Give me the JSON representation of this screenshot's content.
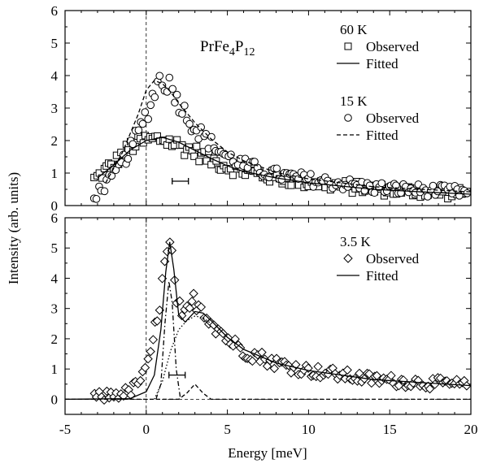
{
  "chart_data": {
    "type": "scatter",
    "xlabel": "Energy [meV]",
    "ylabel": "Intensity (arb. units)",
    "xlim": [
      -5,
      20
    ],
    "x_ticks": [
      "-5",
      "0",
      "5",
      "10",
      "15",
      "20"
    ],
    "panels": [
      {
        "name": "top",
        "ylim": [
          0,
          6
        ],
        "y_ticks": [
          "0",
          "1",
          "2",
          "3",
          "4",
          "5",
          "6"
        ],
        "compound": {
          "base": "PrFe",
          "sub1": "4",
          "mid": "P",
          "sub2": "12"
        },
        "legend": [
          {
            "temp": "60 K",
            "entries": [
              {
                "marker": "square",
                "label": "Observed"
              },
              {
                "line": "solid",
                "label": "Fitted"
              }
            ]
          },
          {
            "temp": "15 K",
            "entries": [
              {
                "marker": "circle",
                "label": "Observed"
              },
              {
                "line": "dashed",
                "label": "Fitted"
              }
            ]
          }
        ],
        "series": [
          {
            "name": "60 K Observed",
            "marker": "square",
            "x_range": [
              -3.2,
              19.8
            ],
            "profile": [
              [
                -3.2,
                0.8
              ],
              [
                -2,
                1.3
              ],
              [
                -1,
                1.8
              ],
              [
                0,
                2.0
              ],
              [
                1,
                2.05
              ],
              [
                2,
                1.85
              ],
              [
                3,
                1.65
              ],
              [
                4,
                1.4
              ],
              [
                5,
                1.2
              ],
              [
                6,
                1.05
              ],
              [
                8,
                0.85
              ],
              [
                10,
                0.7
              ],
              [
                14,
                0.5
              ],
              [
                20,
                0.35
              ]
            ]
          },
          {
            "name": "15 K Observed",
            "marker": "circle",
            "x_range": [
              -3.2,
              19.8
            ],
            "profile": [
              [
                -3.2,
                0.3
              ],
              [
                -2,
                0.9
              ],
              [
                -1,
                1.7
              ],
              [
                0,
                2.8
              ],
              [
                0.8,
                3.9
              ],
              [
                1.5,
                3.7
              ],
              [
                2.2,
                3.0
              ],
              [
                3,
                2.4
              ],
              [
                4,
                1.9
              ],
              [
                5,
                1.5
              ],
              [
                6,
                1.25
              ],
              [
                8,
                0.95
              ],
              [
                10,
                0.8
              ],
              [
                14,
                0.55
              ],
              [
                20,
                0.4
              ]
            ]
          },
          {
            "name": "60 K Fitted",
            "line": "solid",
            "points": [
              [
                -3,
                0.85
              ],
              [
                -2,
                1.25
              ],
              [
                -1,
                1.7
              ],
              [
                0,
                2.0
              ],
              [
                1,
                2.1
              ],
              [
                2,
                1.95
              ],
              [
                3,
                1.7
              ],
              [
                4,
                1.45
              ],
              [
                5,
                1.22
              ],
              [
                6,
                1.05
              ],
              [
                8,
                0.85
              ],
              [
                10,
                0.7
              ],
              [
                12,
                0.6
              ],
              [
                14,
                0.5
              ],
              [
                17,
                0.42
              ],
              [
                20,
                0.35
              ]
            ]
          },
          {
            "name": "15 K Fitted",
            "line": "dashed",
            "points": [
              [
                -2.5,
                0.7
              ],
              [
                -1.5,
                1.6
              ],
              [
                -0.5,
                2.8
              ],
              [
                0,
                3.55
              ],
              [
                0.5,
                3.85
              ],
              [
                1,
                3.75
              ],
              [
                1.5,
                3.5
              ],
              [
                2,
                3.15
              ],
              [
                3,
                2.55
              ],
              [
                4,
                2.05
              ],
              [
                5,
                1.65
              ],
              [
                6,
                1.38
              ],
              [
                8,
                1.02
              ],
              [
                10,
                0.82
              ],
              [
                14,
                0.58
              ],
              [
                20,
                0.42
              ]
            ]
          }
        ],
        "resolution_bar": {
          "x": [
            1.6,
            2.6
          ],
          "y": 0.75
        },
        "baseline_y": 0
      },
      {
        "name": "bottom",
        "ylim": [
          -0.5,
          6
        ],
        "y_ticks": [
          "0",
          "1",
          "2",
          "3",
          "4",
          "5",
          "6"
        ],
        "legend": [
          {
            "temp": "3.5 K",
            "entries": [
              {
                "marker": "diamond",
                "label": "Observed"
              },
              {
                "line": "solid",
                "label": "Fitted"
              }
            ]
          }
        ],
        "series": [
          {
            "name": "3.5 K Observed",
            "marker": "diamond",
            "x_range": [
              -3.2,
              19.8
            ],
            "profile": [
              [
                -3.2,
                0.05
              ],
              [
                -1,
                0.25
              ],
              [
                0,
                0.9
              ],
              [
                0.8,
                3.0
              ],
              [
                1.2,
                4.6
              ],
              [
                1.5,
                5.1
              ],
              [
                1.8,
                3.6
              ],
              [
                2.2,
                2.6
              ],
              [
                3,
                3.3
              ],
              [
                4,
                2.6
              ],
              [
                5,
                2.0
              ],
              [
                6,
                1.6
              ],
              [
                8,
                1.2
              ],
              [
                10,
                0.95
              ],
              [
                14,
                0.65
              ],
              [
                20,
                0.45
              ]
            ]
          },
          {
            "name": "3.5 K Fitted",
            "line": "solid",
            "points": [
              [
                -5,
                0
              ],
              [
                -1,
                0.02
              ],
              [
                0,
                0.25
              ],
              [
                0.5,
                0.8
              ],
              [
                0.9,
                2.3
              ],
              [
                1.2,
                4.2
              ],
              [
                1.45,
                5.2
              ],
              [
                1.7,
                4.3
              ],
              [
                2.0,
                2.8
              ],
              [
                2.4,
                2.55
              ],
              [
                3,
                2.9
              ],
              [
                3.5,
                2.85
              ],
              [
                4,
                2.6
              ],
              [
                5,
                2.05
              ],
              [
                6,
                1.65
              ],
              [
                8,
                1.2
              ],
              [
                10,
                0.95
              ],
              [
                14,
                0.65
              ],
              [
                20,
                0.45
              ]
            ]
          },
          {
            "name": "Dash-dot component",
            "line": "dashdot",
            "points": [
              [
                0.6,
                0
              ],
              [
                0.9,
                0.5
              ],
              [
                1.15,
                2.5
              ],
              [
                1.4,
                3.9
              ],
              [
                1.6,
                3.2
              ],
              [
                1.85,
                1.0
              ],
              [
                2.1,
                0.05
              ]
            ]
          },
          {
            "name": "Dotted component",
            "line": "dotted",
            "points": [
              [
                0.5,
                0
              ],
              [
                1.0,
                0.6
              ],
              [
                1.5,
                1.6
              ],
              [
                2,
                2.3
              ],
              [
                2.5,
                2.6
              ],
              [
                3,
                2.75
              ],
              [
                3.5,
                2.7
              ],
              [
                4,
                2.5
              ]
            ]
          },
          {
            "name": "Small Gaussian",
            "line": "dashed",
            "points": [
              [
                -5,
                0
              ],
              [
                2,
                0
              ],
              [
                2.5,
                0.2
              ],
              [
                3,
                0.5
              ],
              [
                3.5,
                0.2
              ],
              [
                4,
                0
              ],
              [
                20,
                0
              ]
            ]
          }
        ],
        "resolution_bar": {
          "x": [
            1.4,
            2.4
          ],
          "y": 0.8
        },
        "baseline_y": 0
      }
    ]
  }
}
